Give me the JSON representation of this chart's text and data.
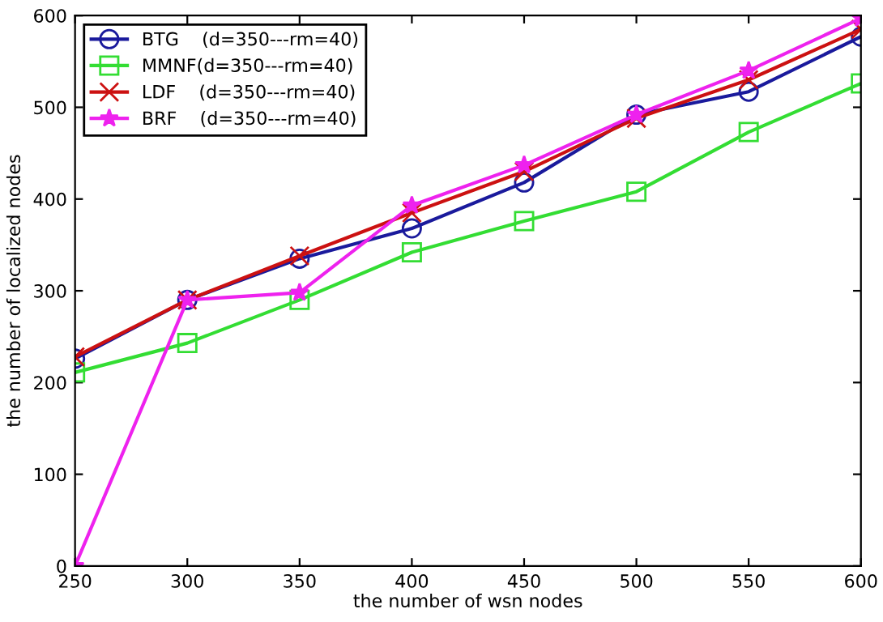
{
  "chart_data": {
    "type": "line",
    "xlabel": "the number of wsn nodes",
    "ylabel": "the number of localized nodes",
    "x": [
      250,
      300,
      350,
      400,
      450,
      500,
      550,
      600
    ],
    "series": [
      {
        "name": "BTG    (d=350---rm=40)",
        "color": "#1a1a9c",
        "marker": "circle",
        "values": [
          226,
          290,
          335,
          368,
          418,
          492,
          517,
          577
        ]
      },
      {
        "name": "MMNF(d=350---rm=40)",
        "color": "#33dd33",
        "marker": "square",
        "values": [
          211,
          243,
          290,
          342,
          376,
          408,
          473,
          526
        ]
      },
      {
        "name": "LDF    (d=350---rm=40)",
        "color": "#cc1111",
        "marker": "cross",
        "values": [
          228,
          290,
          338,
          385,
          430,
          488,
          530,
          585
        ]
      },
      {
        "name": "BRF    (d=350---rm=40)",
        "color": "#ee22ee",
        "marker": "star",
        "values": [
          0,
          290,
          298,
          393,
          437,
          492,
          540,
          597
        ]
      }
    ],
    "xlim": [
      250,
      600
    ],
    "ylim": [
      0,
      600
    ],
    "xticks": [
      250,
      300,
      350,
      400,
      450,
      500,
      550,
      600
    ],
    "yticks": [
      0,
      100,
      200,
      300,
      400,
      500,
      600
    ],
    "grid": false,
    "legend": "top left",
    "line_style": "solid"
  }
}
